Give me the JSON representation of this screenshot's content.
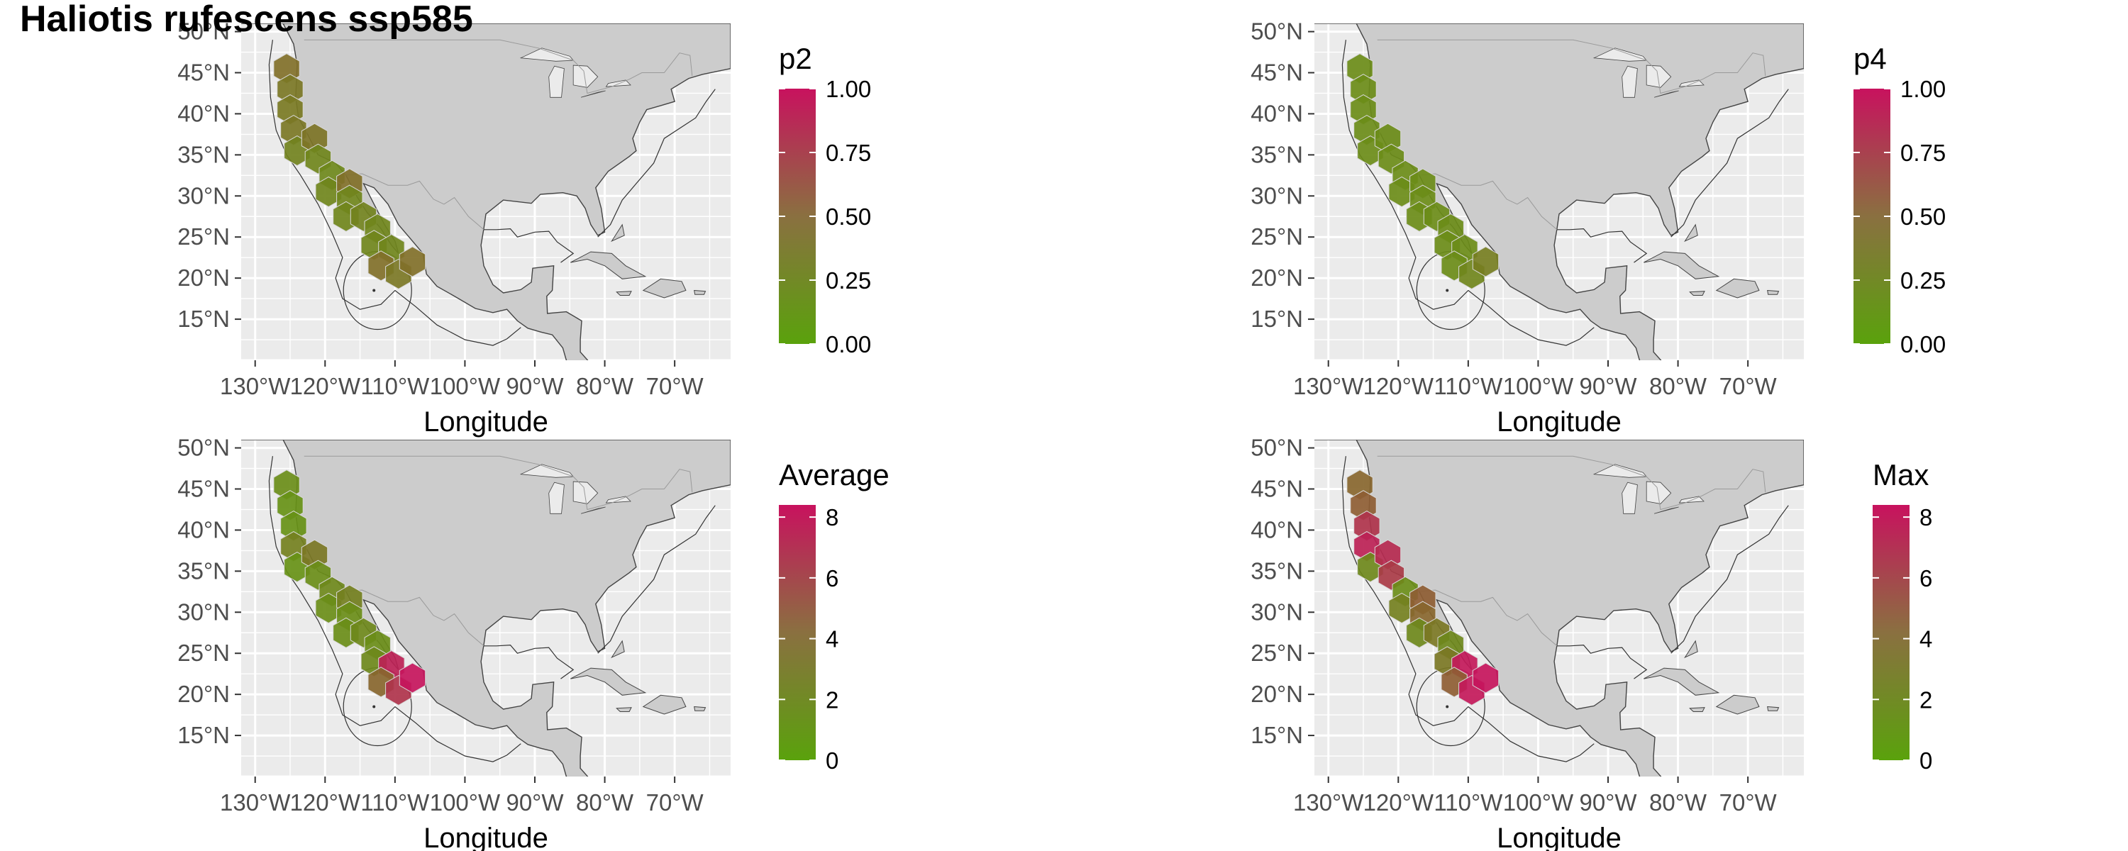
{
  "title": "Haliotis rufescens ssp585",
  "colors": {
    "panel_bg": "#ebebeb",
    "grid": "#ffffff",
    "land": "#cccccc",
    "coast": "#444444",
    "low": "#5aa20c",
    "high": "#c8125e"
  },
  "chart_data": [
    {
      "type": "map",
      "legend_title": "p2",
      "legend_labels": [
        "1.00",
        "0.75",
        "0.50",
        "0.25",
        "0.00"
      ],
      "scale_range": [
        0,
        1
      ],
      "xlabel": "Longitude",
      "ylabel": "",
      "x_ticks": [
        "130°W",
        "120°W",
        "110°W",
        "100°W",
        "90°W",
        "80°W",
        "70°W"
      ],
      "y_ticks": [
        "50°N",
        "45°N",
        "40°N",
        "35°N",
        "30°N",
        "25°N",
        "20°N",
        "15°N"
      ],
      "xlim": [
        -132,
        -62
      ],
      "ylim": [
        10,
        51
      ],
      "cells": [
        {
          "lon": -125.5,
          "lat": 45.5,
          "value": 0.35
        },
        {
          "lon": -125.0,
          "lat": 43.0,
          "value": 0.3
        },
        {
          "lon": -125.0,
          "lat": 40.5,
          "value": 0.28
        },
        {
          "lon": -124.5,
          "lat": 38.0,
          "value": 0.3
        },
        {
          "lon": -124.0,
          "lat": 35.5,
          "value": 0.22
        },
        {
          "lon": -121.5,
          "lat": 37.0,
          "value": 0.32
        },
        {
          "lon": -121.0,
          "lat": 34.5,
          "value": 0.2
        },
        {
          "lon": -119.0,
          "lat": 32.5,
          "value": 0.18
        },
        {
          "lon": -119.5,
          "lat": 30.5,
          "value": 0.2
        },
        {
          "lon": -116.5,
          "lat": 31.5,
          "value": 0.35
        },
        {
          "lon": -116.5,
          "lat": 29.5,
          "value": 0.2
        },
        {
          "lon": -117.0,
          "lat": 27.5,
          "value": 0.2
        },
        {
          "lon": -114.5,
          "lat": 27.5,
          "value": 0.22
        },
        {
          "lon": -112.5,
          "lat": 26.0,
          "value": 0.2
        },
        {
          "lon": -113.0,
          "lat": 24.0,
          "value": 0.2
        },
        {
          "lon": -110.5,
          "lat": 23.5,
          "value": 0.2
        },
        {
          "lon": -112.0,
          "lat": 21.5,
          "value": 0.35
        },
        {
          "lon": -109.5,
          "lat": 20.5,
          "value": 0.3
        },
        {
          "lon": -107.5,
          "lat": 22.0,
          "value": 0.35
        }
      ]
    },
    {
      "type": "map",
      "legend_title": "p4",
      "legend_labels": [
        "1.00",
        "0.75",
        "0.50",
        "0.25",
        "0.00"
      ],
      "scale_range": [
        0,
        1
      ],
      "xlabel": "Longitude",
      "ylabel": "",
      "x_ticks": [
        "130°W",
        "120°W",
        "110°W",
        "100°W",
        "90°W",
        "80°W",
        "70°W"
      ],
      "y_ticks": [
        "50°N",
        "45°N",
        "40°N",
        "35°N",
        "30°N",
        "25°N",
        "20°N",
        "15°N"
      ],
      "xlim": [
        -132,
        -62
      ],
      "ylim": [
        10,
        51
      ],
      "cells": [
        {
          "lon": -125.5,
          "lat": 45.5,
          "value": 0.15
        },
        {
          "lon": -125.0,
          "lat": 43.0,
          "value": 0.15
        },
        {
          "lon": -125.0,
          "lat": 40.5,
          "value": 0.15
        },
        {
          "lon": -124.5,
          "lat": 38.0,
          "value": 0.15
        },
        {
          "lon": -124.0,
          "lat": 35.5,
          "value": 0.15
        },
        {
          "lon": -121.5,
          "lat": 37.0,
          "value": 0.15
        },
        {
          "lon": -121.0,
          "lat": 34.5,
          "value": 0.15
        },
        {
          "lon": -119.0,
          "lat": 32.5,
          "value": 0.15
        },
        {
          "lon": -119.5,
          "lat": 30.5,
          "value": 0.15
        },
        {
          "lon": -116.5,
          "lat": 31.5,
          "value": 0.15
        },
        {
          "lon": -116.5,
          "lat": 29.5,
          "value": 0.15
        },
        {
          "lon": -117.0,
          "lat": 27.5,
          "value": 0.15
        },
        {
          "lon": -114.5,
          "lat": 27.5,
          "value": 0.15
        },
        {
          "lon": -112.5,
          "lat": 26.0,
          "value": 0.15
        },
        {
          "lon": -113.0,
          "lat": 24.0,
          "value": 0.15
        },
        {
          "lon": -110.5,
          "lat": 23.5,
          "value": 0.15
        },
        {
          "lon": -112.0,
          "lat": 21.5,
          "value": 0.15
        },
        {
          "lon": -109.5,
          "lat": 20.5,
          "value": 0.2
        },
        {
          "lon": -107.5,
          "lat": 22.0,
          "value": 0.25
        }
      ]
    },
    {
      "type": "map",
      "legend_title": "Average",
      "legend_labels": [
        "8",
        "6",
        "4",
        "2",
        "0"
      ],
      "scale_range": [
        0,
        8.4
      ],
      "xlabel": "Longitude",
      "ylabel": "",
      "x_ticks": [
        "130°W",
        "120°W",
        "110°W",
        "100°W",
        "90°W",
        "80°W",
        "70°W"
      ],
      "y_ticks": [
        "50°N",
        "45°N",
        "40°N",
        "35°N",
        "30°N",
        "25°N",
        "20°N",
        "15°N"
      ],
      "xlim": [
        -132,
        -62
      ],
      "ylim": [
        10,
        51
      ],
      "cells": [
        {
          "lon": -125.5,
          "lat": 45.5,
          "value": 1.2
        },
        {
          "lon": -125.0,
          "lat": 43.0,
          "value": 1.0
        },
        {
          "lon": -124.5,
          "lat": 40.5,
          "value": 1.0
        },
        {
          "lon": -124.5,
          "lat": 38.0,
          "value": 2.0
        },
        {
          "lon": -124.0,
          "lat": 35.5,
          "value": 1.0
        },
        {
          "lon": -121.5,
          "lat": 37.0,
          "value": 2.5
        },
        {
          "lon": -121.0,
          "lat": 34.5,
          "value": 1.2
        },
        {
          "lon": -119.0,
          "lat": 32.5,
          "value": 1.5
        },
        {
          "lon": -119.5,
          "lat": 30.5,
          "value": 1.2
        },
        {
          "lon": -116.5,
          "lat": 31.5,
          "value": 2.0
        },
        {
          "lon": -116.5,
          "lat": 29.5,
          "value": 1.2
        },
        {
          "lon": -117.0,
          "lat": 27.5,
          "value": 1.2
        },
        {
          "lon": -114.5,
          "lat": 27.5,
          "value": 1.5
        },
        {
          "lon": -112.5,
          "lat": 26.0,
          "value": 1.2
        },
        {
          "lon": -113.0,
          "lat": 24.0,
          "value": 1.5
        },
        {
          "lon": -110.5,
          "lat": 23.5,
          "value": 7.5
        },
        {
          "lon": -112.0,
          "lat": 21.5,
          "value": 3.5
        },
        {
          "lon": -109.5,
          "lat": 20.5,
          "value": 6.5
        },
        {
          "lon": -107.5,
          "lat": 22.0,
          "value": 8.2
        }
      ]
    },
    {
      "type": "map",
      "legend_title": "Max",
      "legend_labels": [
        "8",
        "6",
        "4",
        "2",
        "0"
      ],
      "scale_range": [
        0,
        8.4
      ],
      "xlabel": "Longitude",
      "ylabel": "",
      "x_ticks": [
        "130°W",
        "120°W",
        "110°W",
        "100°W",
        "90°W",
        "80°W",
        "70°W"
      ],
      "y_ticks": [
        "50°N",
        "45°N",
        "40°N",
        "35°N",
        "30°N",
        "25°N",
        "20°N",
        "15°N"
      ],
      "xlim": [
        -132,
        -62
      ],
      "ylim": [
        10,
        51
      ],
      "cells": [
        {
          "lon": -125.5,
          "lat": 45.5,
          "value": 3.5
        },
        {
          "lon": -125.0,
          "lat": 43.0,
          "value": 4.0
        },
        {
          "lon": -124.5,
          "lat": 40.5,
          "value": 6.5
        },
        {
          "lon": -124.5,
          "lat": 38.0,
          "value": 7.5
        },
        {
          "lon": -124.0,
          "lat": 35.5,
          "value": 1.5
        },
        {
          "lon": -121.5,
          "lat": 37.0,
          "value": 7.0
        },
        {
          "lon": -121.0,
          "lat": 34.5,
          "value": 6.0
        },
        {
          "lon": -119.0,
          "lat": 32.5,
          "value": 1.2
        },
        {
          "lon": -119.5,
          "lat": 30.5,
          "value": 2.0
        },
        {
          "lon": -116.5,
          "lat": 31.5,
          "value": 4.0
        },
        {
          "lon": -116.5,
          "lat": 29.5,
          "value": 3.5
        },
        {
          "lon": -117.0,
          "lat": 27.5,
          "value": 1.5
        },
        {
          "lon": -114.5,
          "lat": 27.5,
          "value": 2.5
        },
        {
          "lon": -112.5,
          "lat": 26.0,
          "value": 1.5
        },
        {
          "lon": -113.0,
          "lat": 24.0,
          "value": 2.5
        },
        {
          "lon": -110.5,
          "lat": 23.5,
          "value": 8.0
        },
        {
          "lon": -112.0,
          "lat": 21.5,
          "value": 4.0
        },
        {
          "lon": -109.5,
          "lat": 20.5,
          "value": 8.0
        },
        {
          "lon": -107.5,
          "lat": 22.0,
          "value": 8.2
        }
      ]
    }
  ]
}
